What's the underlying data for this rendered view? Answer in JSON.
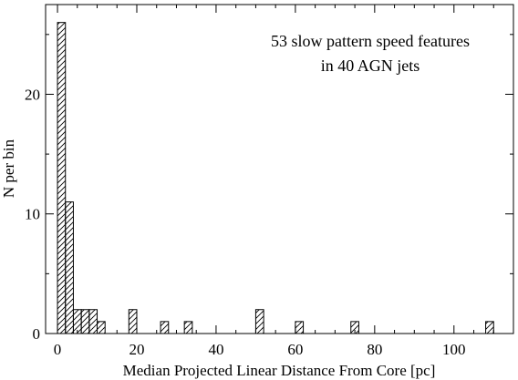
{
  "chart_data": {
    "type": "bar",
    "xlabel": "Median Projected Linear Distance From Core [pc]",
    "ylabel": "N per bin",
    "annotation_lines": [
      "53 slow pattern speed features",
      "in 40 AGN jets"
    ],
    "xlim": [
      -3,
      115
    ],
    "ylim": [
      0,
      27.5
    ],
    "bin_width": 2,
    "xticks": [
      0,
      20,
      40,
      60,
      80,
      100
    ],
    "yticks": [
      0,
      10,
      20
    ],
    "bins": [
      {
        "x0": 0,
        "count": 26
      },
      {
        "x0": 2,
        "count": 11
      },
      {
        "x0": 4,
        "count": 2
      },
      {
        "x0": 6,
        "count": 2
      },
      {
        "x0": 8,
        "count": 2
      },
      {
        "x0": 10,
        "count": 1
      },
      {
        "x0": 18,
        "count": 2
      },
      {
        "x0": 26,
        "count": 1
      },
      {
        "x0": 32,
        "count": 1
      },
      {
        "x0": 50,
        "count": 2
      },
      {
        "x0": 60,
        "count": 1
      },
      {
        "x0": 74,
        "count": 1
      },
      {
        "x0": 108,
        "count": 1
      }
    ],
    "fill_pattern": "diagonal-hatch",
    "grid": false
  }
}
